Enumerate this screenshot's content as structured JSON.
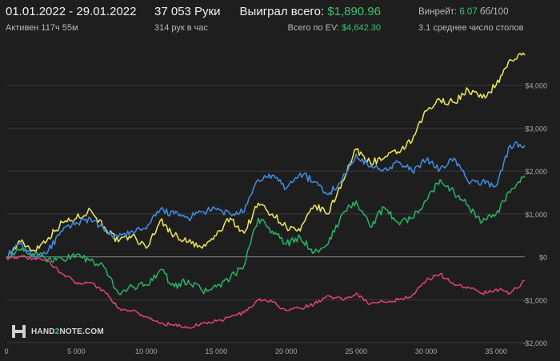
{
  "header": {
    "date_range": "01.01.2022 - 29.01.2022",
    "active_time": "Активен 117ч 55м",
    "hands": "37 053 Руки",
    "hands_per_hour": "314 рук в час",
    "won_total_label": "Выиграл всего:",
    "won_total_value": "$1,890.96",
    "ev_label": "Всего по EV:",
    "ev_value": "$4,642.30",
    "winrate_label": "Винрейт:",
    "winrate_value": "6.07",
    "winrate_unit": "бб/100",
    "tables": "3.1 среднее число столов"
  },
  "logo": {
    "text_a": "HAND",
    "text_b": "2",
    "text_c": "NOTE.COM"
  },
  "colors": {
    "background": "#1e1e1e",
    "grid": "#3a3a3a",
    "zero_line": "#8a8a8a",
    "ev": "#f0ea4a",
    "showdown": "#3d8fe3",
    "won": "#22b569",
    "non_showdown": "#e0436e",
    "green_text": "#35c36b"
  },
  "chart_data": {
    "type": "line",
    "xlim": [
      0,
      37053
    ],
    "ylim": [
      -2000,
      5000
    ],
    "x_ticks": [
      0,
      5000,
      10000,
      15000,
      20000,
      25000,
      30000,
      35000
    ],
    "x_tick_labels": [
      "0",
      "5 000",
      "10 000",
      "15 000",
      "20 000",
      "25 000",
      "30 000",
      "35 000"
    ],
    "y_ticks": [
      -2000,
      -1000,
      0,
      1000,
      2000,
      3000,
      4000
    ],
    "y_tick_labels": [
      "-$2,000",
      "-$1,000",
      "$0",
      "$1,000",
      "$2,000",
      "$3,000",
      "$4,000"
    ],
    "grid": true,
    "series": [
      {
        "key": "ev",
        "x": [
          0,
          1000,
          2000,
          3000,
          4000,
          5000,
          6000,
          7000,
          8000,
          9000,
          10000,
          11000,
          12000,
          13000,
          14000,
          15000,
          16000,
          17000,
          18000,
          19000,
          20000,
          21000,
          22000,
          23000,
          24000,
          25000,
          26000,
          27000,
          28000,
          29000,
          30000,
          31000,
          32000,
          33000,
          34000,
          35000,
          36000,
          37053
        ],
        "y": [
          0,
          350,
          150,
          450,
          800,
          900,
          1100,
          700,
          350,
          500,
          200,
          850,
          500,
          350,
          200,
          500,
          900,
          550,
          1250,
          1000,
          700,
          600,
          1200,
          1000,
          1750,
          2500,
          2200,
          2300,
          2450,
          2700,
          3400,
          3650,
          3600,
          3900,
          3700,
          4000,
          4600,
          4700
        ]
      },
      {
        "key": "showdown",
        "x": [
          0,
          1000,
          2000,
          3000,
          4000,
          5000,
          6000,
          7000,
          8000,
          9000,
          10000,
          11000,
          12000,
          13000,
          14000,
          15000,
          16000,
          17000,
          18000,
          19000,
          20000,
          21000,
          22000,
          23000,
          24000,
          25000,
          26000,
          27000,
          28000,
          29000,
          30000,
          31000,
          32000,
          33000,
          34000,
          35000,
          36000,
          37053
        ],
        "y": [
          0,
          300,
          0,
          150,
          600,
          800,
          900,
          600,
          450,
          600,
          650,
          1100,
          1000,
          900,
          1050,
          1100,
          1000,
          1050,
          1800,
          1900,
          1600,
          1950,
          1750,
          1450,
          1800,
          2400,
          2100,
          2050,
          2200,
          2000,
          2250,
          2050,
          2300,
          1750,
          1750,
          1650,
          2600,
          2600
        ]
      },
      {
        "key": "won",
        "x": [
          0,
          1000,
          2000,
          3000,
          4000,
          5000,
          6000,
          7000,
          8000,
          9000,
          10000,
          11000,
          12000,
          13000,
          14000,
          15000,
          16000,
          17000,
          18000,
          19000,
          20000,
          21000,
          22000,
          23000,
          24000,
          25000,
          26000,
          27000,
          28000,
          29000,
          30000,
          31000,
          32000,
          33000,
          34000,
          35000,
          36000,
          37053
        ],
        "y": [
          0,
          150,
          50,
          -50,
          -50,
          50,
          -100,
          -250,
          -850,
          -700,
          -650,
          -300,
          -700,
          -550,
          -800,
          -700,
          -500,
          -200,
          900,
          600,
          300,
          450,
          100,
          300,
          1000,
          1300,
          700,
          1150,
          800,
          900,
          1300,
          1800,
          1500,
          1200,
          800,
          1000,
          1500,
          1890.96
        ]
      },
      {
        "key": "non_showdown",
        "x": [
          0,
          1000,
          2000,
          3000,
          4000,
          5000,
          6000,
          7000,
          8000,
          9000,
          10000,
          11000,
          12000,
          13000,
          14000,
          15000,
          16000,
          17000,
          18000,
          19000,
          20000,
          21000,
          22000,
          23000,
          24000,
          25000,
          26000,
          27000,
          28000,
          29000,
          30000,
          31000,
          32000,
          33000,
          34000,
          35000,
          36000,
          37053
        ],
        "y": [
          0,
          0,
          -50,
          -100,
          -400,
          -600,
          -600,
          -800,
          -1200,
          -1250,
          -1400,
          -1550,
          -1600,
          -1650,
          -1550,
          -1500,
          -1400,
          -1300,
          -1000,
          -1050,
          -1250,
          -1200,
          -1100,
          -900,
          -1000,
          -850,
          -1100,
          -1050,
          -1000,
          -900,
          -550,
          -400,
          -650,
          -700,
          -850,
          -750,
          -850,
          -550
        ]
      }
    ]
  }
}
